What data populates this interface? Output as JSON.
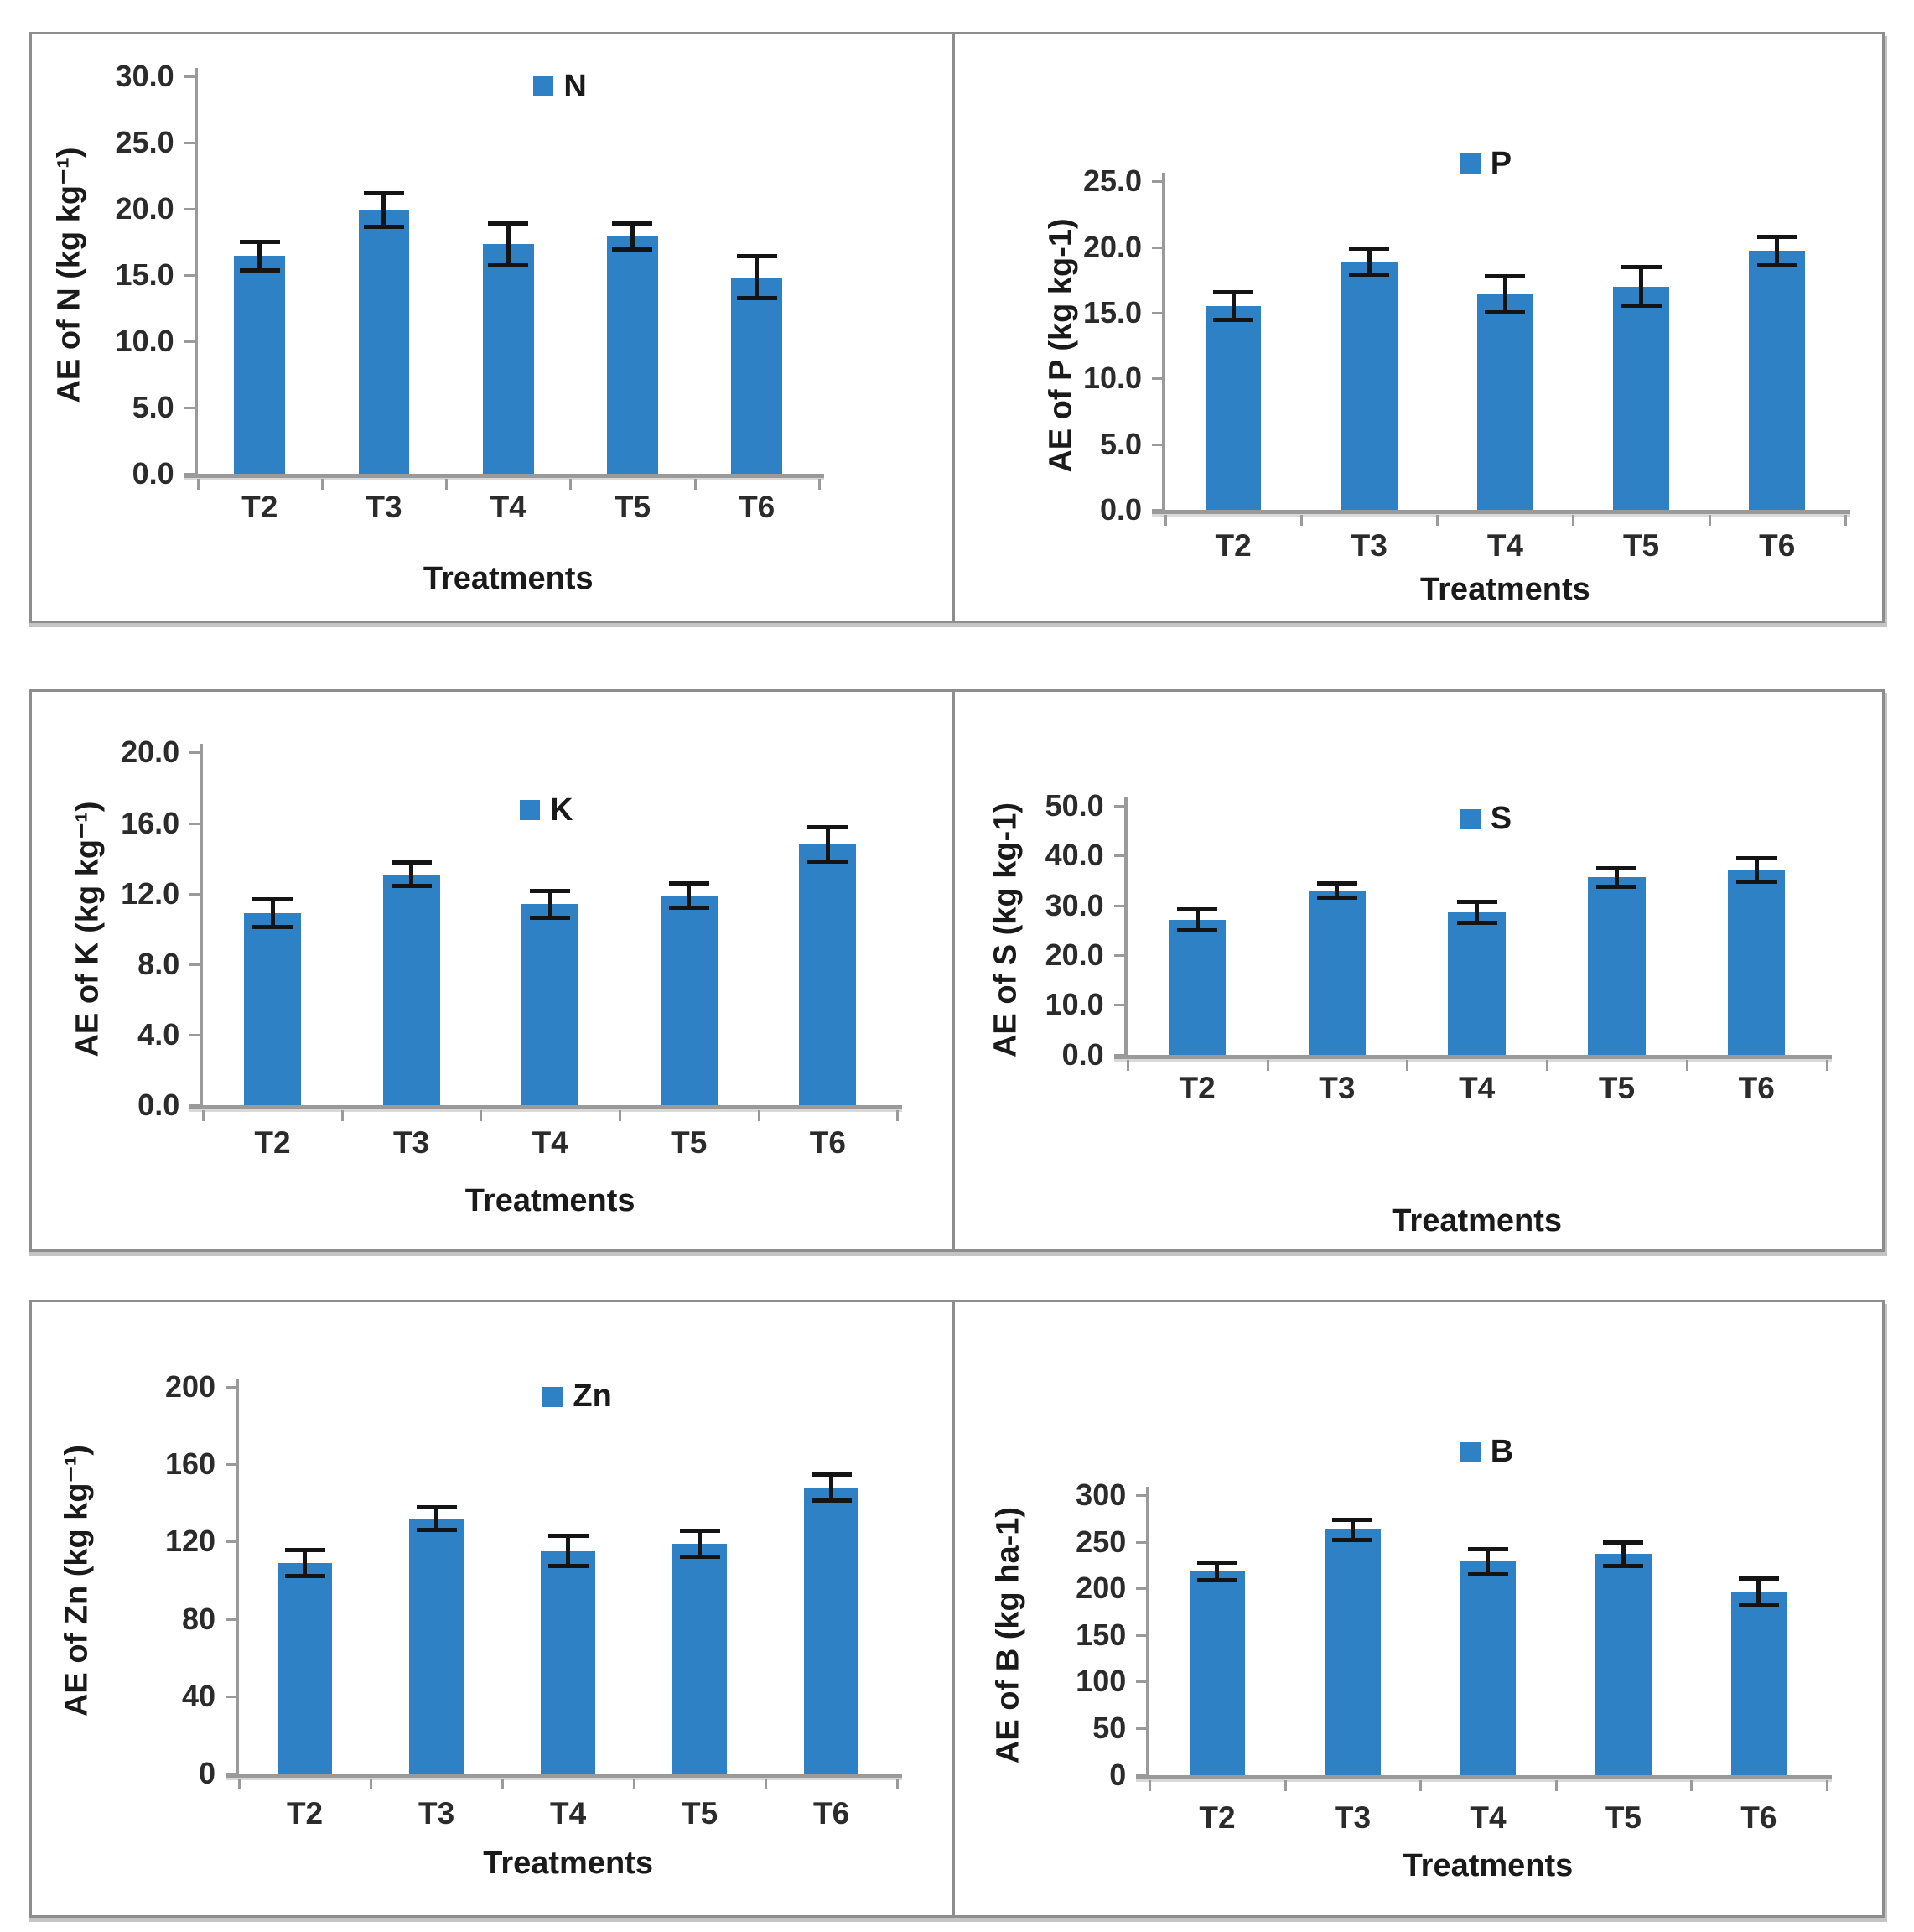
{
  "figure": {
    "xlabel": "Treatments",
    "categories": [
      "T2",
      "T3",
      "T4",
      "T5",
      "T6"
    ],
    "bar_color": "#2e81c4",
    "axis_color": "#9a9a9a",
    "panel_border_color": "#8d8d8d"
  },
  "chart_data": [
    {
      "type": "bar",
      "legend": "N",
      "ylabel": "AE of N (kg kg⁻¹)",
      "xlabel": "Treatments",
      "categories": [
        "T2",
        "T3",
        "T4",
        "T5",
        "T6"
      ],
      "values": [
        16.4,
        19.9,
        17.3,
        17.9,
        14.8
      ],
      "errors": [
        1.1,
        1.3,
        1.6,
        1.0,
        1.6
      ],
      "ylim": [
        0,
        30
      ],
      "ystep": 5,
      "ytick_labels": [
        "0.0",
        "5.0",
        "10.0",
        "15.0",
        "20.0",
        "25.0",
        "30.0"
      ],
      "grid": false,
      "legend_position": "top-center",
      "bar_color": "#2e81c4"
    },
    {
      "type": "bar",
      "legend": "P",
      "ylabel": "AE of P (kg kg-1)",
      "xlabel": "Treatments",
      "categories": [
        "T2",
        "T3",
        "T4",
        "T5",
        "T6"
      ],
      "values": [
        15.5,
        18.9,
        16.4,
        17.0,
        19.7
      ],
      "errors": [
        1.1,
        1.0,
        1.4,
        1.5,
        1.1
      ],
      "ylim": [
        0,
        25
      ],
      "ystep": 5,
      "ytick_labels": [
        "0.0",
        "5.0",
        "10.0",
        "15.0",
        "20.0",
        "25.0"
      ],
      "grid": false,
      "legend_position": "top-center",
      "bar_color": "#2e81c4"
    },
    {
      "type": "bar",
      "legend": "K",
      "ylabel": "AE of K (kg kg⁻¹)",
      "xlabel": "Treatments",
      "categories": [
        "T2",
        "T3",
        "T4",
        "T5",
        "T6"
      ],
      "values": [
        10.9,
        13.1,
        11.4,
        11.9,
        14.8
      ],
      "errors": [
        0.8,
        0.7,
        0.8,
        0.7,
        1.0
      ],
      "ylim": [
        0,
        20
      ],
      "ystep": 4,
      "ytick_labels": [
        "0.0",
        "4.0",
        "8.0",
        "12.0",
        "16.0",
        "20.0"
      ],
      "grid": false,
      "legend_position": "top-center",
      "bar_color": "#2e81c4"
    },
    {
      "type": "bar",
      "legend": "S",
      "ylabel": "AE of S (kg kg-1)",
      "xlabel": "Treatments",
      "categories": [
        "T2",
        "T3",
        "T4",
        "T5",
        "T6"
      ],
      "values": [
        27.1,
        32.9,
        28.6,
        35.6,
        37.1
      ],
      "errors": [
        2.2,
        1.5,
        2.2,
        1.9,
        2.4
      ],
      "ylim": [
        0,
        50
      ],
      "ystep": 10,
      "ytick_labels": [
        "0.0",
        "10.0",
        "20.0",
        "30.0",
        "40.0",
        "50.0"
      ],
      "grid": false,
      "legend_position": "top-center",
      "bar_color": "#2e81c4"
    },
    {
      "type": "bar",
      "legend": "Zn",
      "ylabel": "AE of Zn (kg kg⁻¹)",
      "xlabel": "Treatments",
      "categories": [
        "T2",
        "T3",
        "T4",
        "T5",
        "T6"
      ],
      "values": [
        109,
        132,
        115,
        119,
        148
      ],
      "errors": [
        7,
        6,
        8,
        7,
        7
      ],
      "ylim": [
        0,
        200
      ],
      "ystep": 40,
      "ytick_labels": [
        "0",
        "40",
        "80",
        "120",
        "160",
        "200"
      ],
      "grid": false,
      "legend_position": "top-center",
      "bar_color": "#2e81c4"
    },
    {
      "type": "bar",
      "legend": "B",
      "ylabel": "AE of B (kg ha-1)",
      "xlabel": "Treatments",
      "categories": [
        "T2",
        "T3",
        "T4",
        "T5",
        "T6"
      ],
      "values": [
        218,
        263,
        229,
        237,
        196
      ],
      "errors": [
        10,
        11,
        14,
        13,
        15
      ],
      "ylim": [
        0,
        300
      ],
      "ystep": 50,
      "ytick_labels": [
        "0",
        "50",
        "100",
        "150",
        "200",
        "250",
        "300"
      ],
      "grid": false,
      "legend_position": "top-center",
      "bar_color": "#2e81c4"
    }
  ]
}
